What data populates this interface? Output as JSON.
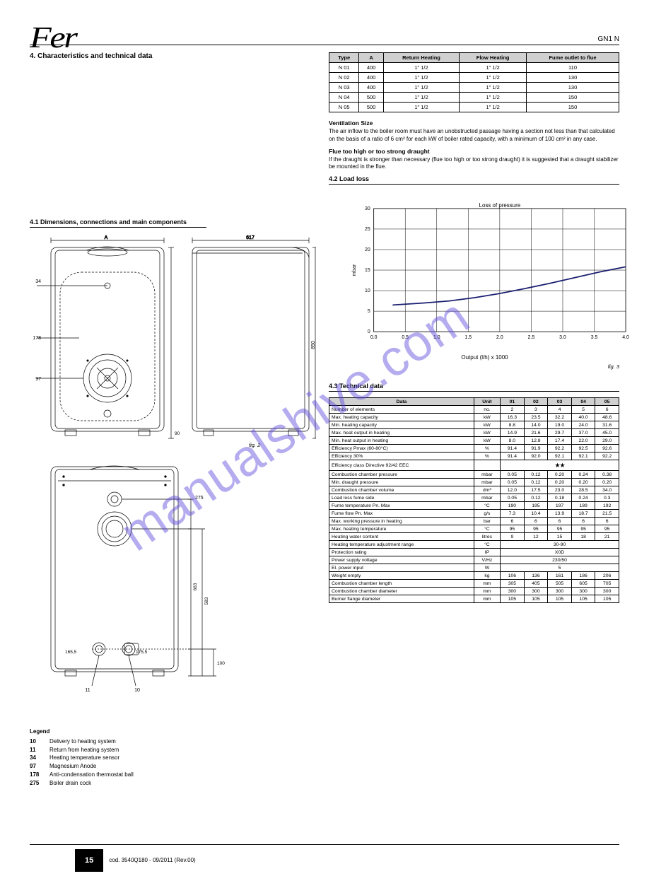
{
  "brand": "Fer",
  "product": "GN1 N",
  "watermark": "manualshive.com",
  "section_title": "4. Characteristics and technical data",
  "ventilation_heading": "Ventilation Size",
  "ventilation_text": "The air inflow to the boiler room must have an unobstructed passage having a section not less than that calculated on the basis of a ratio of 6 cm² for each kW of boiler rated capacity, with a minimum of 100 cm² in any case.",
  "dimensions_heading": "4.1 Dimensions, connections and main components",
  "models_table": {
    "columns": [
      "Type",
      "A",
      "Return Heating",
      "Flow Heating",
      "Fume outlet to flue"
    ],
    "rows": [
      [
        "N 01",
        "400",
        "1\" 1/2",
        "1\" 1/2",
        "110"
      ],
      [
        "N 02",
        "400",
        "1\" 1/2",
        "1\" 1/2",
        "130"
      ],
      [
        "N 03",
        "400",
        "1\" 1/2",
        "1\" 1/2",
        "130"
      ],
      [
        "N 04",
        "500",
        "1\" 1/2",
        "1\" 1/2",
        "150"
      ],
      [
        "N 05",
        "500",
        "1\" 1/2",
        "1\" 1/2",
        "150"
      ]
    ]
  },
  "toohigh_heading": "Flue too high or too strong draught",
  "toohigh_text": "If the draught is stronger than necessary (flue too high or too strong draught) it is suggested that a draught stabilizer be mounted in the flue.",
  "loadloss_heading": "4.2 Load loss",
  "chart": {
    "type": "line",
    "title": "Loss of pressure",
    "xlabel": "Output (l/h) x 1000",
    "ylabel": "mbar",
    "xlim": [
      0,
      4.0
    ],
    "ylim": [
      0,
      30
    ],
    "xticks": [
      0,
      0.5,
      1.0,
      1.5,
      2.0,
      2.5,
      3.0,
      3.5,
      4.0
    ],
    "yticks": [
      0,
      5,
      10,
      15,
      20,
      25,
      30
    ],
    "grid_color": "#000000",
    "background_color": "#ffffff",
    "line_color": "#1a1f70",
    "line_width": 1.8,
    "points": [
      {
        "x": 0.3,
        "y": 6.5
      },
      {
        "x": 0.8,
        "y": 7.0
      },
      {
        "x": 1.2,
        "y": 7.5
      },
      {
        "x": 1.6,
        "y": 8.3
      },
      {
        "x": 2.0,
        "y": 9.3
      },
      {
        "x": 2.4,
        "y": 10.5
      },
      {
        "x": 2.8,
        "y": 11.8
      },
      {
        "x": 3.2,
        "y": 13.2
      },
      {
        "x": 3.6,
        "y": 14.6
      },
      {
        "x": 4.0,
        "y": 15.8
      }
    ]
  },
  "figure_captions": {
    "fig2": "fig. 2",
    "fig3": "fig. 3"
  },
  "diagram_dims": {
    "width_A": "A",
    "depth": "617",
    "height_850": "850",
    "dim_90": "90",
    "dim_100": "100",
    "dim_165_5": "165,5",
    "dim_175_5": "175,5",
    "dim_583": "583",
    "dim_663": "663",
    "node_34": "34",
    "node_178": "178",
    "node_97": "97",
    "node_275": "275",
    "node_11": "11",
    "node_10": "10"
  },
  "legend": {
    "title": "Legend",
    "items": [
      {
        "k": "10",
        "v": "Delivery to heating system"
      },
      {
        "k": "11",
        "v": "Return from heating system"
      },
      {
        "k": "34",
        "v": "Heating temperature sensor"
      },
      {
        "k": "97",
        "v": "Magnesium Anode"
      },
      {
        "k": "178",
        "v": "Anti-condensation thermostat ball"
      },
      {
        "k": "275",
        "v": "Boiler drain cock"
      }
    ]
  },
  "techdata_heading": "4.3 Technical data",
  "tech_table": {
    "columns": [
      "Data",
      "Unit",
      "01",
      "02",
      "03",
      "04",
      "05"
    ],
    "rows": [
      {
        "label": "Number of elements",
        "unit": "no.",
        "v": [
          "2",
          "3",
          "4",
          "5",
          "6"
        ]
      },
      {
        "label": "Max. heating capacity",
        "unit": "kW",
        "v": [
          "16.3",
          "23.5",
          "32.2",
          "40.0",
          "48.6"
        ]
      },
      {
        "label": "Min. heating capacity",
        "unit": "kW",
        "v": [
          "8.8",
          "14.0",
          "19.0",
          "24.0",
          "31.6"
        ]
      },
      {
        "label": "Max. heat output in heating",
        "unit": "kW",
        "v": [
          "14.9",
          "21.6",
          "29.7",
          "37.0",
          "45.0"
        ]
      },
      {
        "label": "Min. heat output in heating",
        "unit": "kW",
        "v": [
          "8.0",
          "12.8",
          "17.4",
          "22.0",
          "29.0"
        ]
      },
      {
        "label": "Efficiency Pmax (60-80°C)",
        "unit": "%",
        "v": [
          "91.4",
          "91.9",
          "92.2",
          "92.5",
          "92.6"
        ]
      },
      {
        "label": "Efficiency 30%",
        "unit": "%",
        "v": [
          "91.4",
          "92.0",
          "92.1",
          "92.1",
          "92.2"
        ]
      },
      {
        "label": "Efficiency class Directive 92/42 EEC",
        "unit": "",
        "v": [
          "★★",
          "",
          "",
          "",
          ""
        ],
        "colspan": true,
        "stars": true
      },
      {
        "label": "Combustion chamber pressure",
        "unit": "mbar",
        "v": [
          "0.05",
          "0.12",
          "0.20",
          "0.24",
          "0.38"
        ]
      },
      {
        "label": "Min. draught pressure",
        "unit": "mbar",
        "v": [
          "0.05",
          "0.12",
          "0.20",
          "0.20",
          "0.20"
        ]
      },
      {
        "label": "Combustion chamber volume",
        "unit": "dm³",
        "v": [
          "12.0",
          "17.5",
          "23.0",
          "28.5",
          "34.0"
        ]
      },
      {
        "label": "Load loss fume side",
        "unit": "mbar",
        "v": [
          "0.05",
          "0.12",
          "0.18",
          "0.24",
          "0.3"
        ]
      },
      {
        "label": "Fume temperature Pn. Max",
        "unit": "°C",
        "v": [
          "190",
          "195",
          "197",
          "189",
          "192"
        ]
      },
      {
        "label": "Fume flow Pn. Max",
        "unit": "g/s",
        "v": [
          "7.3",
          "10.4",
          "13.9",
          "18.7",
          "21.5"
        ]
      },
      {
        "label": "Max. working pressure in heating",
        "unit": "bar",
        "v": [
          "6",
          "6",
          "6",
          "6",
          "6"
        ]
      },
      {
        "label": "Max. heating temperature",
        "unit": "°C",
        "v": [
          "95",
          "95",
          "95",
          "95",
          "95"
        ]
      },
      {
        "label": "Heating water content",
        "unit": "litres",
        "v": [
          "9",
          "12",
          "15",
          "18",
          "21"
        ]
      },
      {
        "label": "Heating temperature adjustment range",
        "unit": "°C",
        "v": [
          "30-90",
          "",
          "",
          "",
          ""
        ]
      },
      {
        "label": "Protection rating",
        "unit": "IP",
        "v": [
          "X0D",
          "",
          "",
          "",
          ""
        ]
      },
      {
        "label": "Power supply voltage",
        "unit": "V/Hz",
        "v": [
          "230/50",
          "",
          "",
          "",
          ""
        ]
      },
      {
        "label": "El. power input",
        "unit": "W",
        "v": [
          "5",
          "",
          "",
          "",
          ""
        ]
      },
      {
        "label": "Weight empty",
        "unit": "kg",
        "v": [
          "106",
          "136",
          "161",
          "186",
          "206"
        ]
      },
      {
        "label": "Combustion chamber length",
        "unit": "mm",
        "v": [
          "305",
          "405",
          "505",
          "605",
          "705"
        ]
      },
      {
        "label": "Combustion chamber diameter",
        "unit": "mm",
        "v": [
          "300",
          "300",
          "300",
          "300",
          "300"
        ]
      },
      {
        "label": "Burner flange diameter",
        "unit": "mm",
        "v": [
          "105",
          "105",
          "105",
          "105",
          "105"
        ]
      }
    ]
  },
  "footer": {
    "page": "15",
    "code": "cod. 3540Q180  -  09/2011  (Rev.00)"
  },
  "colors": {
    "header_bg": "#d0d0d0",
    "chart_line": "#1a1f70",
    "watermark": "rgba(90,70,220,0.45)"
  }
}
